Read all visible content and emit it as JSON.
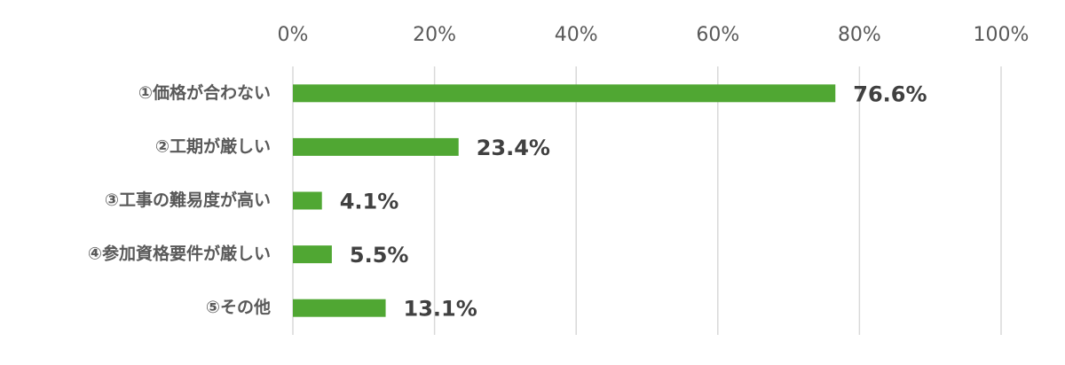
{
  "chart_data": {
    "type": "hbar",
    "categories": [
      "①価格が合わない",
      "②工期が厳しい",
      "③工事の難易度が高い",
      "④参加資格要件が厳しい",
      "⑤その他"
    ],
    "values": [
      76.6,
      23.4,
      4.1,
      5.5,
      13.1
    ],
    "value_labels": [
      "76.6%",
      "23.4%",
      "4.1%",
      "5.5%",
      "13.1%"
    ],
    "color": "#50a733",
    "xlim": [
      0,
      100
    ],
    "xticks": [
      {
        "value": 0,
        "label": "0%"
      },
      {
        "value": 20,
        "label": "20%"
      },
      {
        "value": 40,
        "label": "40%"
      },
      {
        "value": 60,
        "label": "60%"
      },
      {
        "value": 80,
        "label": "80%"
      },
      {
        "value": 100,
        "label": "100%"
      }
    ],
    "grid": true
  }
}
